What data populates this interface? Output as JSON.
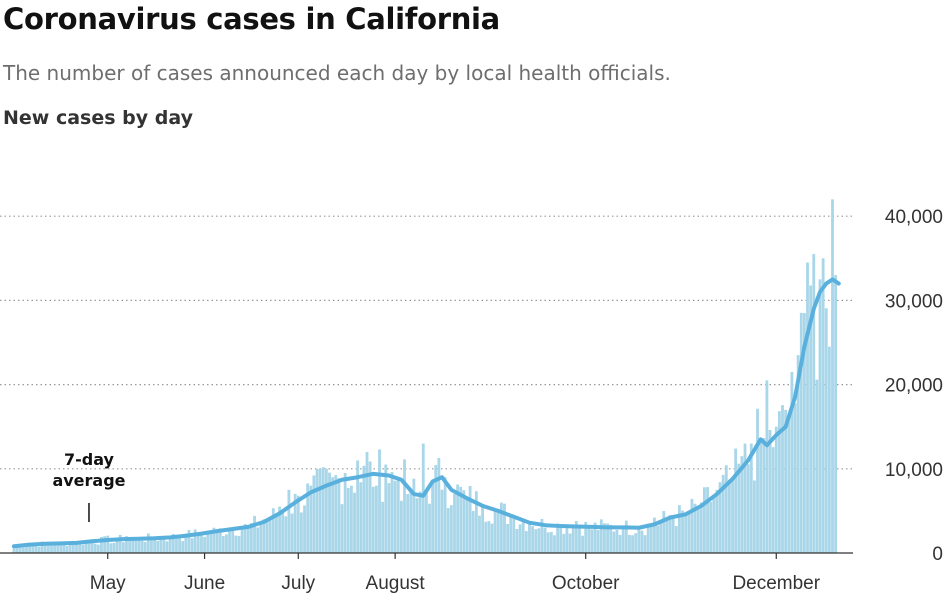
{
  "header": {
    "title": "Coronavirus cases in California",
    "subtitle": "The number of cases announced each day by local health officials.",
    "section_label": "New cases by day"
  },
  "colors": {
    "bar": "#a9d6e8",
    "line": "#5ab0dd",
    "grid": "#999999",
    "axis": "#333333",
    "text": "#333333"
  },
  "chart_data": {
    "type": "bar",
    "title": "New cases by day",
    "xlabel": "",
    "ylabel": "",
    "ylim": [
      0,
      42000
    ],
    "y_ticks": [
      0,
      10000,
      20000,
      30000,
      40000
    ],
    "y_tick_labels": [
      "0",
      "10,000",
      "20,000",
      "30,000",
      "40,000"
    ],
    "x_ticks": [
      {
        "label": "May",
        "day": 30
      },
      {
        "label": "June",
        "day": 61
      },
      {
        "label": "July",
        "day": 91
      },
      {
        "label": "August",
        "day": 122
      },
      {
        "label": "October",
        "day": 183
      },
      {
        "label": "December",
        "day": 244
      }
    ],
    "x_range_days": [
      0,
      266
    ],
    "series": [
      {
        "name": "New cases",
        "type": "bar",
        "points": [
          [
            0,
            700
          ],
          [
            5,
            900
          ],
          [
            10,
            1000
          ],
          [
            15,
            1200
          ],
          [
            20,
            1100
          ],
          [
            25,
            1500
          ],
          [
            28,
            1900
          ],
          [
            32,
            1200
          ],
          [
            36,
            2000
          ],
          [
            40,
            1700
          ],
          [
            45,
            1800
          ],
          [
            50,
            1900
          ],
          [
            55,
            2300
          ],
          [
            60,
            2500
          ],
          [
            65,
            2700
          ],
          [
            70,
            2900
          ],
          [
            75,
            3200
          ],
          [
            80,
            4000
          ],
          [
            85,
            5500
          ],
          [
            88,
            7500
          ],
          [
            91,
            6800
          ],
          [
            95,
            8000
          ],
          [
            98,
            10000
          ],
          [
            102,
            9000
          ],
          [
            106,
            9500
          ],
          [
            110,
            11000
          ],
          [
            113,
            12000
          ],
          [
            116,
            8000
          ],
          [
            119,
            10500
          ],
          [
            123,
            9000
          ],
          [
            126,
            7000
          ],
          [
            129,
            6500
          ],
          [
            131,
            13000
          ],
          [
            134,
            8500
          ],
          [
            138,
            9000
          ],
          [
            141,
            7000
          ],
          [
            145,
            6500
          ],
          [
            150,
            5800
          ],
          [
            155,
            5000
          ],
          [
            160,
            4500
          ],
          [
            165,
            3500
          ],
          [
            170,
            3000
          ],
          [
            175,
            3200
          ],
          [
            180,
            3800
          ],
          [
            185,
            2800
          ],
          [
            190,
            3500
          ],
          [
            195,
            3200
          ],
          [
            200,
            2800
          ],
          [
            205,
            4200
          ],
          [
            210,
            4500
          ],
          [
            215,
            4800
          ],
          [
            220,
            6000
          ],
          [
            225,
            7500
          ],
          [
            230,
            9000
          ],
          [
            233,
            11500
          ],
          [
            236,
            13000
          ],
          [
            239,
            13500
          ],
          [
            241,
            20500
          ],
          [
            244,
            15000
          ],
          [
            247,
            17000
          ],
          [
            249,
            21500
          ],
          [
            251,
            23500
          ],
          [
            253,
            28500
          ],
          [
            254,
            34500
          ],
          [
            256,
            35500
          ],
          [
            258,
            32500
          ],
          [
            259,
            35000
          ],
          [
            261,
            24500
          ],
          [
            262,
            42000
          ],
          [
            263,
            33000
          ]
        ]
      },
      {
        "name": "7-day average",
        "type": "line",
        "points": [
          [
            0,
            800
          ],
          [
            5,
            1000
          ],
          [
            10,
            1100
          ],
          [
            15,
            1150
          ],
          [
            20,
            1200
          ],
          [
            25,
            1400
          ],
          [
            30,
            1550
          ],
          [
            35,
            1650
          ],
          [
            40,
            1700
          ],
          [
            45,
            1750
          ],
          [
            50,
            1850
          ],
          [
            55,
            2050
          ],
          [
            60,
            2300
          ],
          [
            65,
            2600
          ],
          [
            70,
            2850
          ],
          [
            75,
            3100
          ],
          [
            80,
            3700
          ],
          [
            85,
            4700
          ],
          [
            90,
            6000
          ],
          [
            95,
            7200
          ],
          [
            100,
            8000
          ],
          [
            105,
            8700
          ],
          [
            110,
            9000
          ],
          [
            115,
            9400
          ],
          [
            120,
            9200
          ],
          [
            124,
            8700
          ],
          [
            128,
            7000
          ],
          [
            131,
            6800
          ],
          [
            134,
            8500
          ],
          [
            137,
            9000
          ],
          [
            140,
            7500
          ],
          [
            145,
            6500
          ],
          [
            150,
            5600
          ],
          [
            155,
            5000
          ],
          [
            160,
            4300
          ],
          [
            165,
            3600
          ],
          [
            170,
            3300
          ],
          [
            175,
            3200
          ],
          [
            180,
            3150
          ],
          [
            185,
            3100
          ],
          [
            190,
            3050
          ],
          [
            195,
            3050
          ],
          [
            200,
            3000
          ],
          [
            205,
            3400
          ],
          [
            210,
            4200
          ],
          [
            215,
            4600
          ],
          [
            220,
            5600
          ],
          [
            225,
            7000
          ],
          [
            230,
            8800
          ],
          [
            235,
            11000
          ],
          [
            239,
            13500
          ],
          [
            241,
            12800
          ],
          [
            244,
            14000
          ],
          [
            247,
            15000
          ],
          [
            250,
            18500
          ],
          [
            253,
            24500
          ],
          [
            256,
            29000
          ],
          [
            258,
            31000
          ],
          [
            260,
            32000
          ],
          [
            262,
            32500
          ],
          [
            264,
            32000
          ]
        ]
      }
    ],
    "annotations": [
      {
        "text_lines": [
          "7-day",
          "average"
        ],
        "points_to_day": 24,
        "points_to_value": 1300
      }
    ]
  }
}
